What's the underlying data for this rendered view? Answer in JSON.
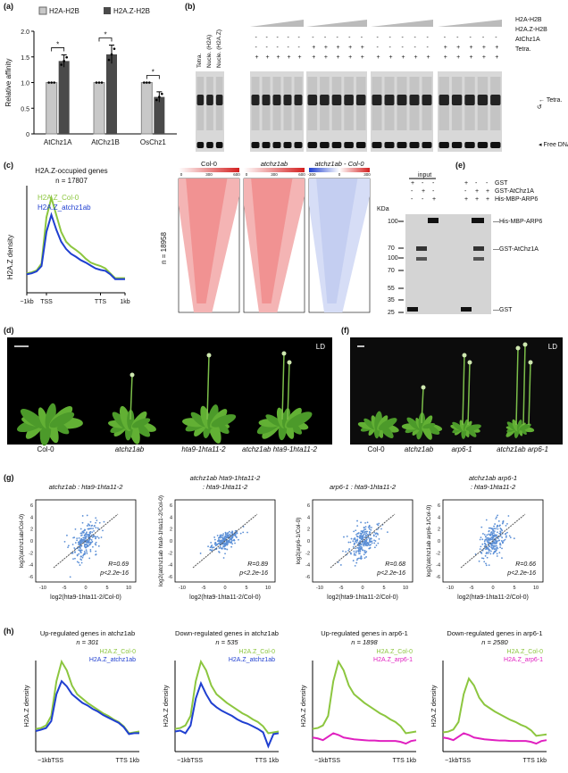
{
  "panels": {
    "a": {
      "label": "(a)",
      "ylabel": "Relative affinity",
      "legend": [
        "H2A-H2B",
        "H2A.Z-H2B"
      ],
      "colors": {
        "h2a": "#c8c8c8",
        "h2az": "#4a4a4a"
      },
      "sig": "*"
    },
    "b": {
      "label": "(b)",
      "lane_labels": [
        "Tetra.",
        "Nucle. (H2A)",
        "Nucle. (H2A.Z)"
      ],
      "rows": [
        "H2A-H2B",
        "H2A.Z-H2B",
        "AtChz1A",
        "Tetra."
      ],
      "bands": [
        "Tetra.",
        "Free DNA"
      ]
    },
    "c": {
      "label": "(c)",
      "title": "H2A.Z-occupied genes",
      "n_label": "n = 17807",
      "ylabel": "H2A.Z density",
      "legend": [
        "H2A.Z_Col-0",
        "H2A.Z_atchz1ab"
      ],
      "xticks": [
        "−1kb",
        "TSS",
        "TTS",
        "1kb"
      ],
      "heatmap_n": "n = 18958",
      "heatmaps": [
        {
          "title": "Col-0",
          "ticks": [
            "0",
            "300",
            "600"
          ],
          "color": "#e03030"
        },
        {
          "title": "atchz1ab",
          "ticks": [
            "0",
            "300",
            "600"
          ],
          "color": "#e03030"
        },
        {
          "title": "atchz1ab - Col-0",
          "ticks": [
            "-300",
            "0",
            "300"
          ],
          "color": "#3060e0"
        }
      ]
    },
    "d": {
      "label": "(d)",
      "tag": "LD",
      "plants": [
        "Col-0",
        "atchz1ab",
        "hta9-1hta11-2",
        "atchz1ab hta9-1hta11-2"
      ]
    },
    "e": {
      "label": "(e)",
      "input": "input",
      "rows": [
        "GST",
        "GST-AtChz1A",
        "His-MBP-ARP6"
      ],
      "kda": "KDa",
      "markers": [
        "100",
        "70",
        "100",
        "70",
        "55",
        "35",
        "25"
      ],
      "bands": [
        "His-MBP-ARP6",
        "GST-AtChz1A",
        "GST"
      ]
    },
    "f": {
      "label": "(f)",
      "tag": "LD",
      "plants": [
        "Col-0",
        "atchz1ab",
        "arp6-1",
        "atchz1ab arp6-1"
      ]
    },
    "g": {
      "label": "(g)",
      "plots": [
        {
          "title": "atchz1ab : hta9-1hta11-2",
          "ylabel": "log2(atchz1ab/Col-0)",
          "xlabel": "log2(hta9-1hta11-2/Col-0)",
          "r": "R=0.69",
          "p": "p<2.2e-16"
        },
        {
          "title": "atchz1ab hta9-1hta11-2 : hta9-1hta11-2",
          "ylabel": "log2(atchz1ab hta9-1hta11-2/Col-0)",
          "xlabel": "log2(hta9-1hta11-2/Col-0)",
          "r": "R=0.89",
          "p": "p<2.2e-16"
        },
        {
          "title": "arp6-1 : hta9-1hta11-2",
          "ylabel": "log2(arp6-1/Col-0)",
          "xlabel": "log2(hta9-1hta11-2/Col-0)",
          "r": "R=0.68",
          "p": "p<2.2e-16"
        },
        {
          "title": "atchz1ab arp6-1 : hta9-1hta11-2",
          "ylabel": "log2(atchz1ab arp6-1/Col-0)",
          "xlabel": "log2(hta9-1hta11-2/Col-0)",
          "r": "R=0.66",
          "p": "p<2.2e-16"
        }
      ]
    },
    "h": {
      "label": "(h)",
      "ylabel": "H2A.Z density",
      "xticks": [
        "−1kbTSS",
        "TTS 1kb"
      ],
      "plots": [
        {
          "title": "Up-regulated genes in atchz1ab",
          "n": "n = 301",
          "legend": [
            "H2A.Z_Col-0",
            "H2A.Z_atchz1ab"
          ]
        },
        {
          "title": "Down-regulated genes in atchz1ab",
          "n": "n = 535",
          "legend": [
            "H2A.Z_Col-0",
            "H2A.Z_atchz1ab"
          ]
        },
        {
          "title": "Up-regulated genes in arp6-1",
          "n": "n = 1898",
          "legend": [
            "H2A.Z_Col-0",
            "H2A.Z_arp6-1"
          ]
        },
        {
          "title": "Down-regulated genes in arp6-1",
          "n": "n = 2580",
          "legend": [
            "H2A.Z_Col-0",
            "H2A.Z_arp6-1"
          ]
        }
      ]
    }
  },
  "chart_data": [
    {
      "type": "bar",
      "panel": "a",
      "categories": [
        "AtChz1A",
        "AtChz1B",
        "OsChz1"
      ],
      "series": [
        {
          "name": "H2A-H2B",
          "values": [
            1.0,
            1.0,
            1.0
          ],
          "err": [
            0.0,
            0.0,
            0.0
          ]
        },
        {
          "name": "H2A.Z-H2B",
          "values": [
            1.42,
            1.55,
            0.72
          ],
          "err": [
            0.12,
            0.18,
            0.1
          ]
        }
      ],
      "ylabel": "Relative affinity",
      "ylim": [
        0,
        2.0
      ],
      "yticks": [
        "0",
        "0.5",
        "1.0",
        "1.5",
        "2.0"
      ]
    },
    {
      "type": "line",
      "panel": "c",
      "ylabel": "H2A.Z density",
      "x": [
        0,
        5,
        10,
        15,
        20,
        25,
        30,
        35,
        40,
        45,
        50,
        55,
        60,
        65,
        70,
        75,
        80,
        85,
        90,
        95,
        100
      ],
      "series": [
        {
          "name": "H2A.Z_Col-0",
          "color": "#8cc63f",
          "values": [
            40,
            42,
            46,
            60,
            155,
            195,
            160,
            125,
            105,
            95,
            88,
            80,
            70,
            62,
            58,
            55,
            50,
            40,
            30,
            30,
            30
          ]
        },
        {
          "name": "H2A.Z_atchz1ab",
          "color": "#1f3fd0",
          "values": [
            38,
            40,
            44,
            55,
            125,
            160,
            130,
            105,
            90,
            80,
            74,
            67,
            62,
            56,
            50,
            47,
            45,
            38,
            28,
            28,
            28
          ]
        }
      ]
    }
  ]
}
